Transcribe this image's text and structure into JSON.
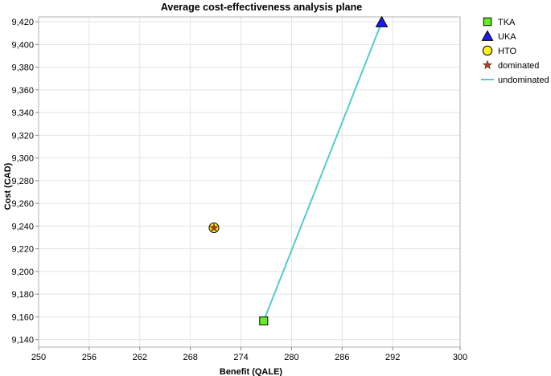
{
  "chart_data": {
    "type": "scatter",
    "title": "Average cost-effectiveness analysis plane",
    "xlabel": "Benefit (QALE)",
    "ylabel": "Cost (CAD)",
    "xlim": [
      250,
      300
    ],
    "ylim": [
      9140,
      9420
    ],
    "x_ticks": [
      250,
      256,
      262,
      268,
      274,
      280,
      286,
      292,
      300
    ],
    "x_tick_labels": [
      "250",
      "256",
      "262",
      "268",
      "274",
      "280",
      "286",
      "292",
      "300"
    ],
    "y_ticks": [
      9140,
      9160,
      9180,
      9200,
      9220,
      9240,
      9260,
      9280,
      9300,
      9320,
      9340,
      9360,
      9380,
      9400,
      9420
    ],
    "y_tick_labels": [
      "9,140",
      "9,160",
      "9,180",
      "9,200",
      "9,220",
      "9,240",
      "9,260",
      "9,280",
      "9,300",
      "9,320",
      "9,340",
      "9,360",
      "9,380",
      "9,400",
      "9,420"
    ],
    "grid": true,
    "legend_position": "right",
    "series": [
      {
        "name": "TKA",
        "marker": "square",
        "color": "#66ee22",
        "points": [
          [
            276.7,
            9156.5
          ]
        ]
      },
      {
        "name": "UKA",
        "marker": "triangle",
        "color": "#1a1aee",
        "points": [
          [
            290.7,
            9419.5
          ]
        ]
      },
      {
        "name": "HTO",
        "marker": "circle",
        "color": "#ffee22",
        "points": [
          [
            270.8,
            9238.5
          ]
        ]
      }
    ],
    "dominated": {
      "name": "dominated",
      "marker": "star",
      "color": "#aa4422",
      "points": [
        [
          270.8,
          9238.5
        ]
      ]
    },
    "undominated": {
      "name": "undominated",
      "color": "#55cccc",
      "points": [
        [
          276.7,
          9156.5
        ],
        [
          290.7,
          9419.5
        ]
      ]
    }
  }
}
